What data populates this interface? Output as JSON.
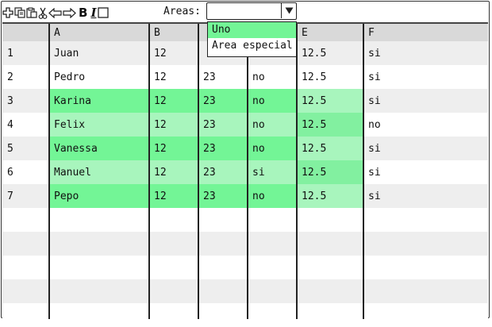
{
  "toolbar": {
    "icons": [
      "add-icon",
      "copy-icon",
      "paste-icon",
      "cut-icon",
      "arrow-left-icon",
      "arrow-right-icon",
      "bold-icon",
      "italic-icon",
      "checkbox-icon"
    ],
    "bold_glyph": "B",
    "italic_glyph": "I"
  },
  "areas": {
    "label": "Areas:",
    "value": "",
    "options": [
      "Uno",
      "Area especial"
    ],
    "highlighted_option": "Uno"
  },
  "table": {
    "columns": [
      "",
      "A",
      "B",
      "",
      "",
      "E",
      "F"
    ],
    "rows": [
      [
        "1",
        "Juan",
        "12",
        "",
        "",
        "12.5",
        "si"
      ],
      [
        "2",
        "Pedro",
        "12",
        "23",
        "no",
        "12.5",
        "si"
      ],
      [
        "3",
        "Karina",
        "12",
        "23",
        "no",
        "12.5",
        "si"
      ],
      [
        "4",
        "Felix",
        "12",
        "23",
        "no",
        "12.5",
        "no"
      ],
      [
        "5",
        "Vanessa",
        "12",
        "23",
        "no",
        "12.5",
        "si"
      ],
      [
        "6",
        "Manuel",
        "12",
        "23",
        "si",
        "12.5",
        "si"
      ],
      [
        "7",
        "Pepo",
        "12",
        "23",
        "no",
        "12.5",
        "si"
      ],
      [
        "",
        "",
        "",
        "",
        "",
        "",
        ""
      ],
      [
        "",
        "",
        "",
        "",
        "",
        "",
        ""
      ],
      [
        "",
        "",
        "",
        "",
        "",
        "",
        ""
      ],
      [
        "",
        "",
        "",
        "",
        "",
        "",
        ""
      ],
      [
        "",
        "",
        "",
        "",
        "",
        "",
        ""
      ]
    ]
  },
  "colors": {
    "header_bg": "#d9d9d9",
    "stripe": "#eeeeee",
    "white": "#ffffff",
    "green_dark": "#73f596",
    "green_light": "#a8f5bd",
    "e_dark": "#82f0a0",
    "e_light": "#a8f5bd",
    "dropdown_highlight": "#73f596"
  }
}
